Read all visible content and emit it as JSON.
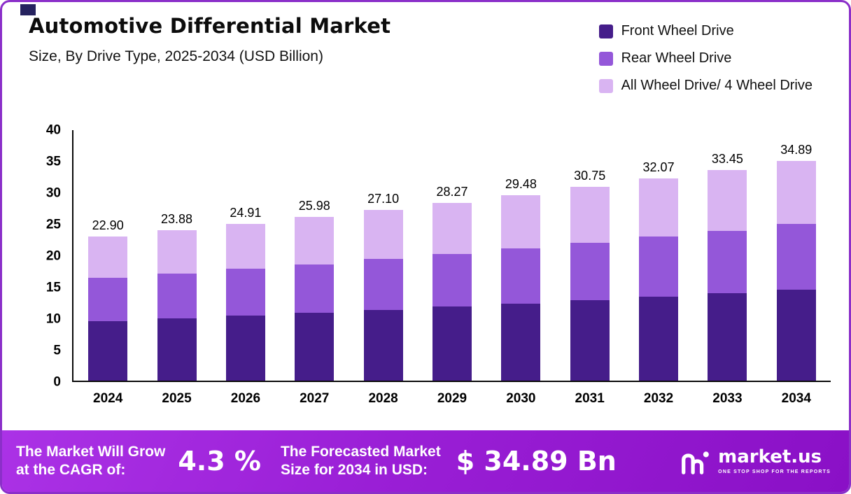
{
  "header": {
    "title": "Automotive Differential Market",
    "subtitle": "Size, By Drive Type, 2025-2034 (USD Billion)"
  },
  "chart_data": {
    "type": "bar",
    "stacked": true,
    "title": "Automotive Differential Market Size, By Drive Type, 2025-2034 (USD Billion)",
    "categories": [
      "2024",
      "2025",
      "2026",
      "2027",
      "2028",
      "2029",
      "2030",
      "2031",
      "2032",
      "2033",
      "2034"
    ],
    "series": [
      {
        "name": "Front Wheel Drive",
        "color": "#451d8a",
        "values": [
          9.5,
          9.9,
          10.34,
          10.78,
          11.25,
          11.73,
          12.23,
          12.76,
          13.31,
          13.88,
          14.48
        ]
      },
      {
        "name": "Rear Wheel Drive",
        "color": "#9457d9",
        "values": [
          6.8,
          7.1,
          7.4,
          7.72,
          8.05,
          8.4,
          8.76,
          9.14,
          9.53,
          9.94,
          10.37
        ]
      },
      {
        "name": "All Wheel Drive/ 4 Wheel Drive",
        "color": "#d9b4f2",
        "values": [
          6.6,
          6.88,
          7.17,
          7.48,
          7.8,
          8.14,
          8.49,
          8.85,
          9.23,
          9.63,
          10.04
        ]
      }
    ],
    "totals": [
      22.9,
      23.88,
      24.91,
      25.98,
      27.1,
      28.27,
      29.48,
      30.75,
      32.07,
      33.45,
      34.89
    ],
    "xlabel": "",
    "ylabel": "",
    "ylim": [
      0,
      40
    ],
    "yticks": [
      0,
      5,
      10,
      15,
      20,
      25,
      30,
      35,
      40
    ],
    "grid": false,
    "legend_position": "top-right"
  },
  "footer": {
    "grow_line1": "The Market Will Grow",
    "grow_line2": "at the CAGR of:",
    "cagr_value": "4.3 %",
    "forecast_line1": "The Forecasted Market",
    "forecast_line2": "Size for 2034 in USD:",
    "forecast_value": "$ 34.89 Bn",
    "brand": "market.us",
    "brand_tagline": "ONE STOP SHOP FOR THE REPORTS"
  },
  "colors": {
    "card_border": "#8b2fc9",
    "footer_purple": "#9a1fd6",
    "corner_accent": "#26235f",
    "axis": "#0a0a0a"
  }
}
